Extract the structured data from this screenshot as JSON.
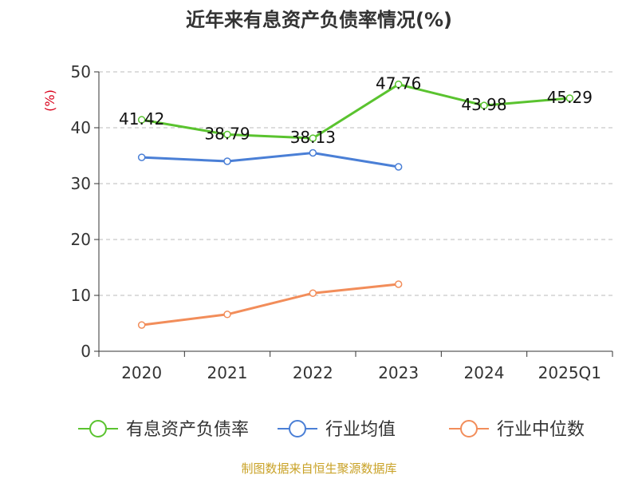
{
  "chart_data": {
    "type": "line",
    "title": "近年来有息资产负债率情况(%)",
    "ylabel": "(%)",
    "xlabel": "",
    "categories": [
      "2020",
      "2021",
      "2022",
      "2023",
      "2024",
      "2025Q1"
    ],
    "ylim": [
      0,
      50
    ],
    "yticks": [
      0,
      10,
      20,
      30,
      40,
      50
    ],
    "grid": true,
    "legend_position": "bottom",
    "series": [
      {
        "name": "有息资产负债率",
        "color": "#5ac32f",
        "values": [
          41.42,
          38.79,
          38.13,
          47.76,
          43.98,
          45.29
        ],
        "labels": [
          "41.42",
          "38.79",
          "38.13",
          "47.76",
          "43.98",
          "45.29"
        ]
      },
      {
        "name": "行业均值",
        "color": "#4a7fd6",
        "values": [
          34.7,
          34.0,
          35.5,
          33.0,
          null,
          null
        ]
      },
      {
        "name": "行业中位数",
        "color": "#f28d5a",
        "values": [
          4.7,
          6.6,
          10.4,
          12.0,
          null,
          null
        ]
      }
    ],
    "source": "制图数据来自恒生聚源数据库"
  }
}
